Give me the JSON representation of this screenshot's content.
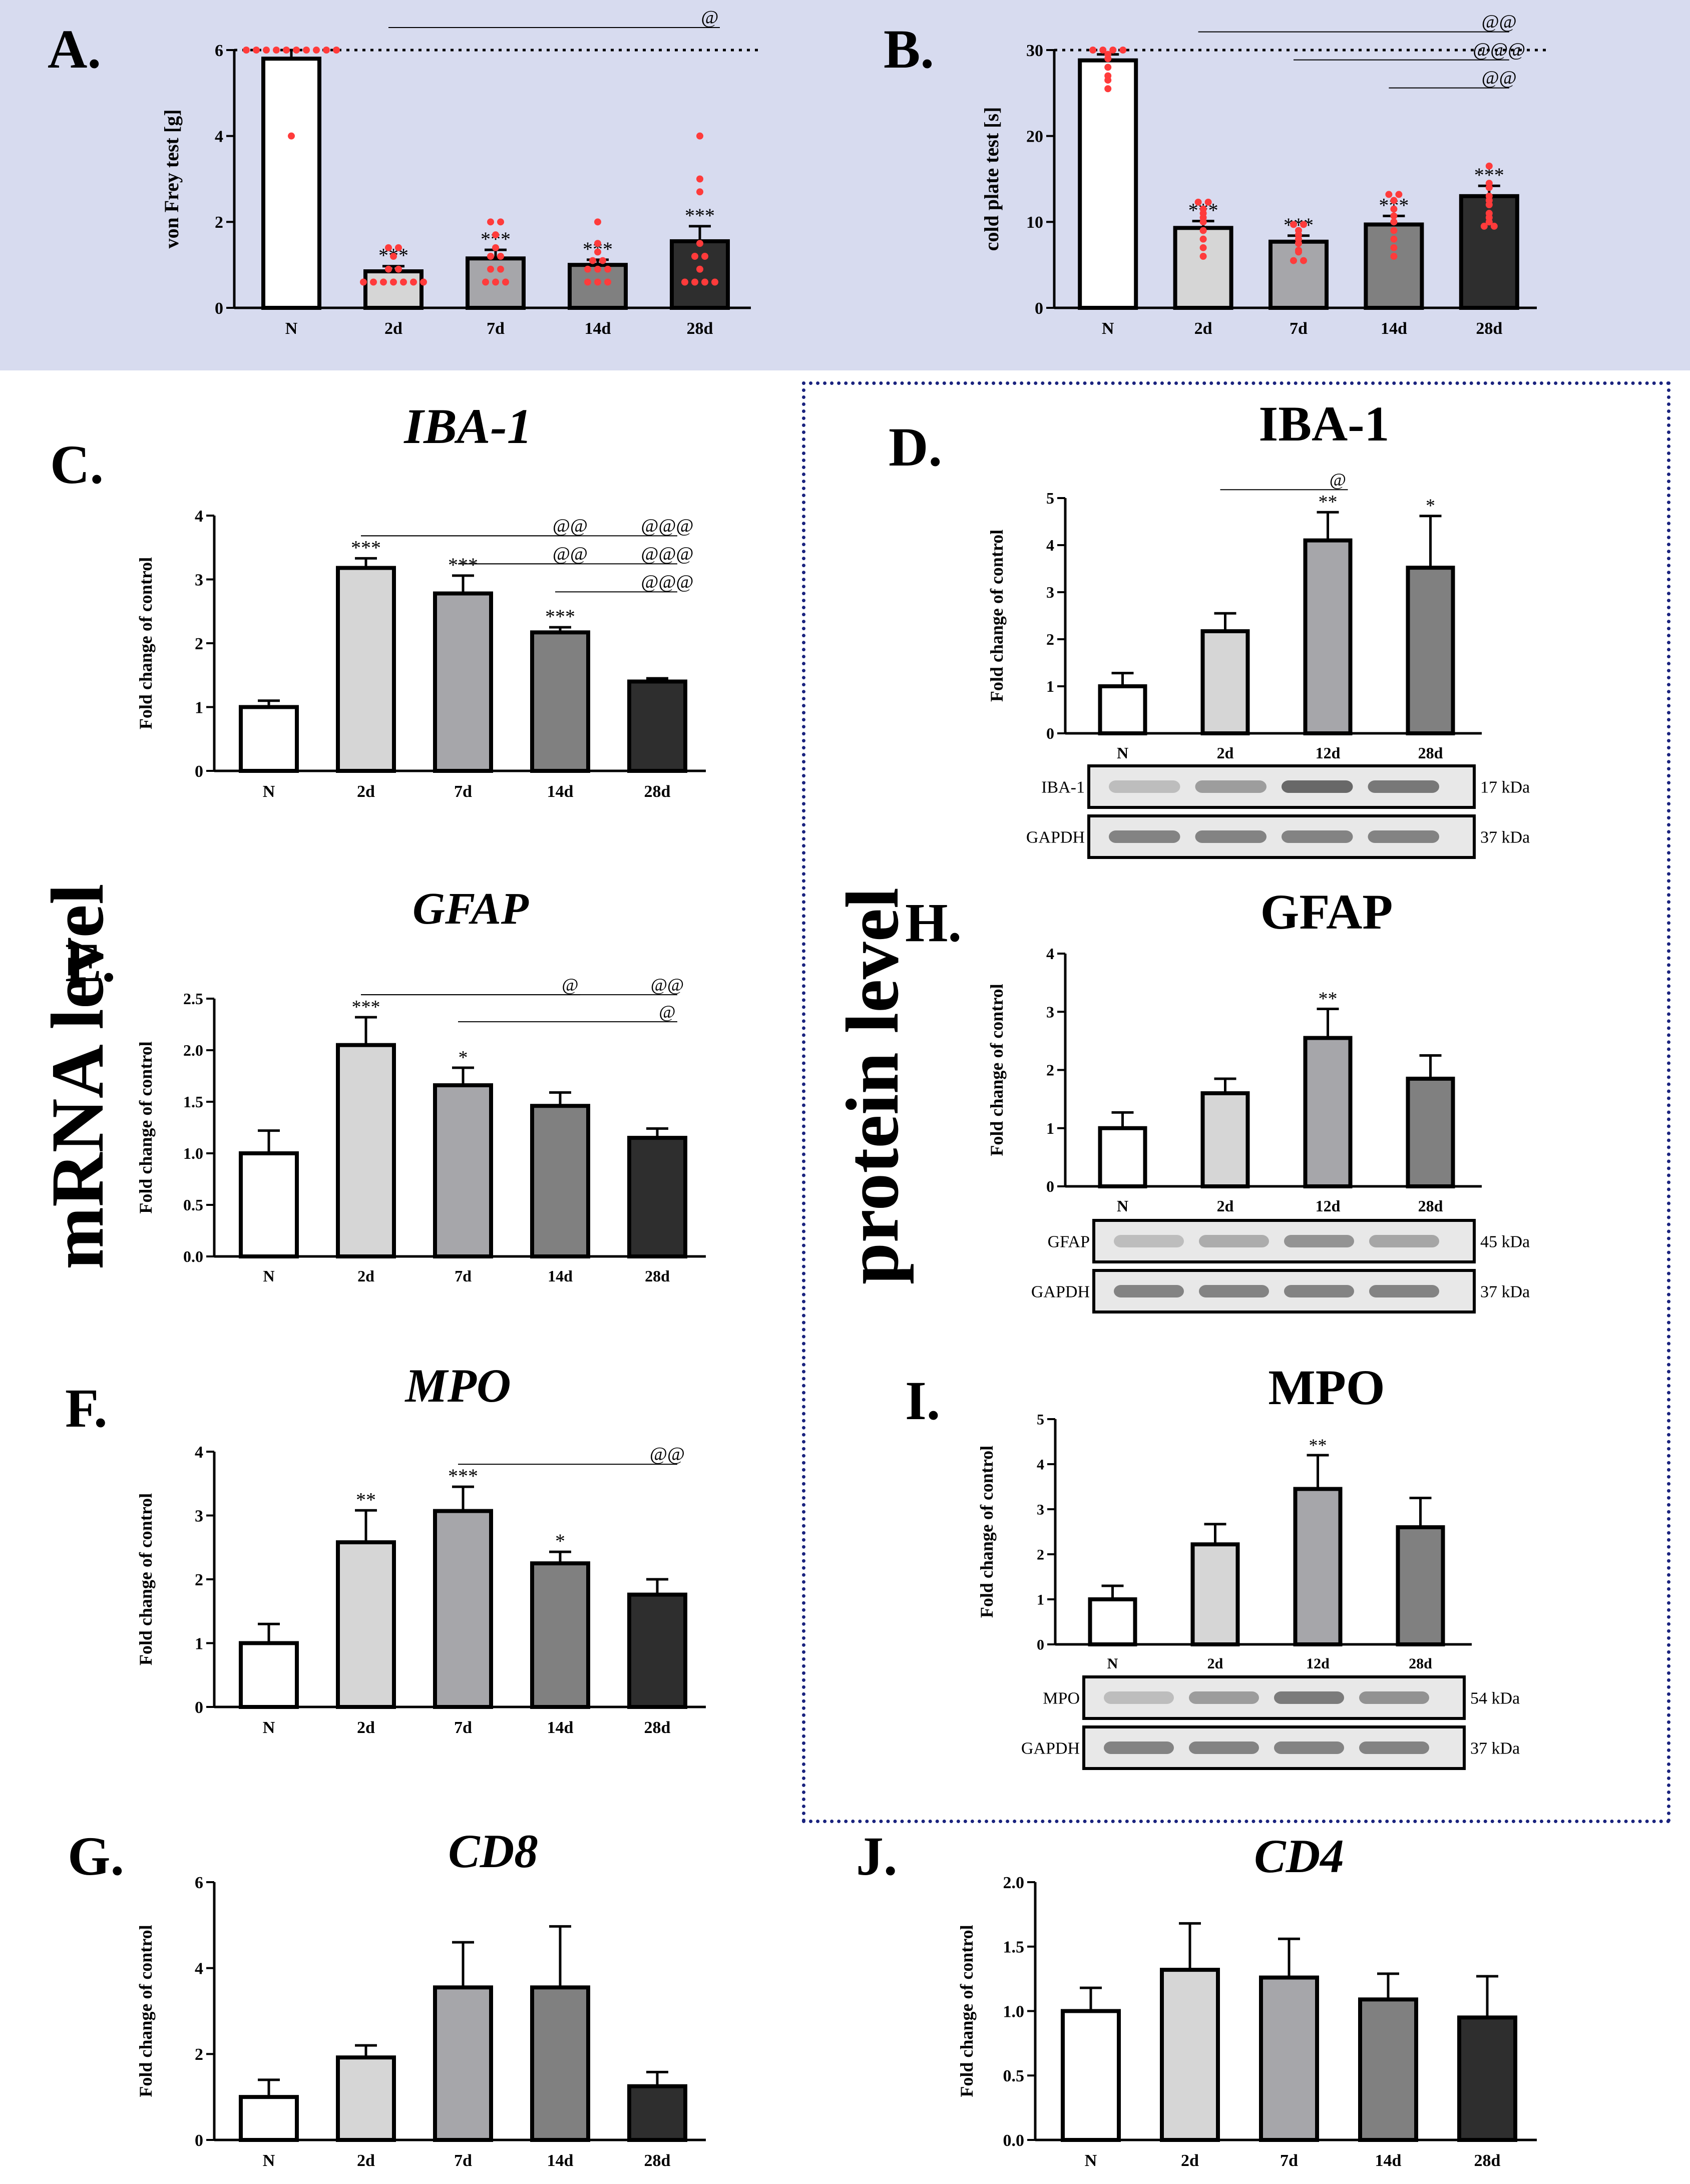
{
  "side_labels": {
    "mrna": "mRNA level",
    "protein": "protein level"
  },
  "colors": {
    "panel_band": "#d7dbef",
    "dots": "#ff3b3b",
    "frame": "#1a237e",
    "bar_fills": [
      "#ffffff",
      "#d6d6d6",
      "#a6a6aa",
      "#808080",
      "#2e2e2e"
    ]
  },
  "chart_data": [
    {
      "id": "A",
      "letter": "A.",
      "type": "bar",
      "title": "",
      "ylabel": "von Frey test [g]",
      "categories": [
        "N",
        "2d",
        "7d",
        "14d",
        "28d"
      ],
      "values": [
        5.8,
        0.85,
        1.15,
        1.0,
        1.55
      ],
      "errors": [
        0.2,
        0.12,
        0.2,
        0.12,
        0.35
      ],
      "ylim": [
        0,
        6
      ],
      "yticks": [
        "0",
        "2",
        "4",
        "6"
      ],
      "baseline": 6,
      "points": [
        [
          6,
          6,
          6,
          6,
          6,
          6,
          6,
          6,
          6,
          6,
          4
        ],
        [
          0.6,
          0.6,
          0.6,
          0.6,
          0.6,
          0.6,
          0.6,
          0.9,
          0.9,
          1.2,
          1.4,
          1.4
        ],
        [
          0.6,
          0.6,
          0.6,
          0.9,
          0.9,
          1.2,
          1.2,
          1.4,
          1.7,
          2,
          2
        ],
        [
          0.6,
          0.6,
          0.6,
          0.9,
          0.9,
          0.9,
          1.1,
          1.1,
          1.3,
          1.5,
          2
        ],
        [
          0.6,
          0.6,
          0.6,
          0.6,
          0.9,
          1.2,
          1.2,
          1.5,
          2.7,
          3,
          4
        ]
      ],
      "stars": [
        "",
        "***",
        "***",
        "***",
        "***"
      ],
      "comparisons": [
        {
          "from": 1,
          "to": 4,
          "label": "@"
        }
      ]
    },
    {
      "id": "B",
      "letter": "B.",
      "type": "bar",
      "title": "",
      "ylabel": "cold plate test  [s]",
      "categories": [
        "N",
        "2d",
        "7d",
        "14d",
        "28d"
      ],
      "values": [
        28.8,
        9.3,
        7.7,
        9.7,
        13.0
      ],
      "errors": [
        0.7,
        0.8,
        0.7,
        1.0,
        1.2
      ],
      "ylim": [
        0,
        30
      ],
      "yticks": [
        "0",
        "10",
        "20",
        "30"
      ],
      "baseline": 30,
      "points": [
        [
          30,
          30,
          30,
          30,
          29.5,
          29,
          28,
          27,
          26.5,
          25.5
        ],
        [
          12.3,
          12.3,
          11.5,
          11,
          10.5,
          10,
          9,
          8,
          7,
          6
        ],
        [
          9.7,
          9.7,
          9,
          8.5,
          8,
          7.5,
          6.7,
          6.5,
          5.5,
          5.5
        ],
        [
          13.2,
          13.2,
          12.5,
          11.5,
          10.7,
          10,
          9,
          8,
          7,
          6
        ],
        [
          16.5,
          14.5,
          14,
          13,
          12.5,
          12,
          11,
          10.5,
          10,
          9.5,
          9.5
        ]
      ],
      "stars": [
        "",
        "***",
        "***",
        "***",
        "***"
      ],
      "comparisons": [
        {
          "from": 1,
          "to": 4,
          "label": "@@"
        },
        {
          "from": 2,
          "to": 4,
          "label": "@@@"
        },
        {
          "from": 3,
          "to": 4,
          "label": "@@"
        }
      ]
    },
    {
      "id": "C",
      "letter": "C.",
      "type": "bar",
      "title": "IBA-1",
      "title_italic": true,
      "ylabel": "Fold change of control",
      "categories": [
        "N",
        "2d",
        "7d",
        "14d",
        "28d"
      ],
      "values": [
        1.0,
        3.18,
        2.78,
        2.17,
        1.4
      ],
      "errors": [
        0.1,
        0.15,
        0.28,
        0.08,
        0.05
      ],
      "ylim": [
        0,
        4
      ],
      "yticks": [
        "0",
        "1",
        "2",
        "3",
        "4"
      ],
      "stars": [
        "",
        "***",
        "***",
        "***",
        ""
      ],
      "comparisons": [
        {
          "from": 1,
          "to": 3,
          "label": "@@"
        },
        {
          "from": 1,
          "to": 4,
          "label": "@@@"
        },
        {
          "from": 2,
          "to": 3,
          "label": "@@"
        },
        {
          "from": 2,
          "to": 4,
          "label": "@@@"
        },
        {
          "from": 3,
          "to": 4,
          "label": "@@@"
        }
      ]
    },
    {
      "id": "D",
      "letter": "D.",
      "type": "bar",
      "title": "IBA-1",
      "title_italic": false,
      "ylabel": "Fold change of control",
      "categories": [
        "N",
        "2d",
        "12d",
        "28d"
      ],
      "values": [
        1.0,
        2.17,
        4.1,
        3.52
      ],
      "errors": [
        0.28,
        0.38,
        0.6,
        1.1
      ],
      "ylim": [
        0,
        5
      ],
      "yticks": [
        "0",
        "1",
        "2",
        "3",
        "4",
        "5"
      ],
      "stars": [
        "",
        "",
        "**",
        "*"
      ],
      "comparisons": [
        {
          "from": 1,
          "to": 2,
          "label": "@"
        }
      ],
      "blot": {
        "rows": [
          {
            "name": "IBA-1",
            "kda": "17 kDa"
          },
          {
            "name": "GAPDH",
            "kda": "37 kDa"
          }
        ]
      }
    },
    {
      "id": "E",
      "letter": "E.",
      "type": "bar",
      "title": "GFAP",
      "title_italic": true,
      "ylabel": "Fold change of control",
      "categories": [
        "N",
        "2d",
        "7d",
        "14d",
        "28d"
      ],
      "values": [
        1.0,
        2.05,
        1.66,
        1.46,
        1.15
      ],
      "errors": [
        0.22,
        0.27,
        0.17,
        0.13,
        0.09
      ],
      "ylim": [
        0,
        2.5
      ],
      "yticks": [
        "0.0",
        "0.5",
        "1.0",
        "1.5",
        "2.0",
        "2.5"
      ],
      "stars": [
        "",
        "***",
        "*",
        "",
        ""
      ],
      "comparisons": [
        {
          "from": 1,
          "to": 3,
          "label": "@"
        },
        {
          "from": 1,
          "to": 4,
          "label": "@@"
        },
        {
          "from": 2,
          "to": 4,
          "label": "@"
        }
      ]
    },
    {
      "id": "H",
      "letter": "H.",
      "type": "bar",
      "title": "GFAP",
      "title_italic": false,
      "ylabel": "Fold change of control",
      "categories": [
        "N",
        "2d",
        "12d",
        "28d"
      ],
      "values": [
        1.0,
        1.6,
        2.55,
        1.85
      ],
      "errors": [
        0.27,
        0.25,
        0.5,
        0.4
      ],
      "ylim": [
        0,
        4
      ],
      "yticks": [
        "0",
        "1",
        "2",
        "3",
        "4"
      ],
      "stars": [
        "",
        "",
        "**",
        ""
      ],
      "comparisons": [],
      "blot": {
        "rows": [
          {
            "name": "GFAP",
            "kda": "45 kDa"
          },
          {
            "name": "GAPDH",
            "kda": "37 kDa"
          }
        ]
      }
    },
    {
      "id": "F",
      "letter": "F.",
      "type": "bar",
      "title": "MPO",
      "title_italic": true,
      "ylabel": "Fold change of control",
      "categories": [
        "N",
        "2d",
        "7d",
        "14d",
        "28d"
      ],
      "values": [
        1.0,
        2.58,
        3.07,
        2.25,
        1.76
      ],
      "errors": [
        0.3,
        0.5,
        0.38,
        0.18,
        0.24
      ],
      "ylim": [
        0,
        4
      ],
      "yticks": [
        "0",
        "1",
        "2",
        "3",
        "4"
      ],
      "stars": [
        "",
        "**",
        "***",
        "*",
        ""
      ],
      "comparisons": [
        {
          "from": 2,
          "to": 4,
          "label": "@@"
        }
      ]
    },
    {
      "id": "I",
      "letter": "I.",
      "type": "bar",
      "title": "MPO",
      "title_italic": false,
      "ylabel": "Fold change of control",
      "categories": [
        "N",
        "2d",
        "12d",
        "28d"
      ],
      "values": [
        1.0,
        2.22,
        3.45,
        2.6
      ],
      "errors": [
        0.3,
        0.45,
        0.75,
        0.65
      ],
      "ylim": [
        0,
        5
      ],
      "yticks": [
        "0",
        "1",
        "2",
        "3",
        "4",
        "5"
      ],
      "stars": [
        "",
        "",
        "**",
        ""
      ],
      "comparisons": [],
      "blot": {
        "rows": [
          {
            "name": "MPO",
            "kda": "54 kDa"
          },
          {
            "name": "GAPDH",
            "kda": "37 kDa"
          }
        ]
      }
    },
    {
      "id": "G",
      "letter": "G.",
      "type": "bar",
      "title": "CD8",
      "title_italic": true,
      "ylabel": "Fold change of control",
      "categories": [
        "N",
        "2d",
        "7d",
        "14d",
        "28d"
      ],
      "values": [
        1.0,
        1.92,
        3.55,
        3.55,
        1.25
      ],
      "errors": [
        0.4,
        0.28,
        1.05,
        1.42,
        0.33
      ],
      "ylim": [
        0,
        6
      ],
      "yticks": [
        "0",
        "2",
        "4",
        "6"
      ],
      "stars": [
        "",
        "",
        "",
        "",
        ""
      ],
      "comparisons": []
    },
    {
      "id": "J",
      "letter": "J.",
      "type": "bar",
      "title": "CD4",
      "title_italic": true,
      "ylabel": "Fold change of control",
      "categories": [
        "N",
        "2d",
        "7d",
        "14d",
        "28d"
      ],
      "values": [
        1.0,
        1.32,
        1.26,
        1.09,
        0.95
      ],
      "errors": [
        0.18,
        0.36,
        0.3,
        0.2,
        0.32
      ],
      "ylim": [
        0,
        2
      ],
      "yticks": [
        "0.0",
        "0.5",
        "1.0",
        "1.5",
        "2.0"
      ],
      "stars": [
        "",
        "",
        "",
        "",
        ""
      ],
      "comparisons": []
    }
  ]
}
